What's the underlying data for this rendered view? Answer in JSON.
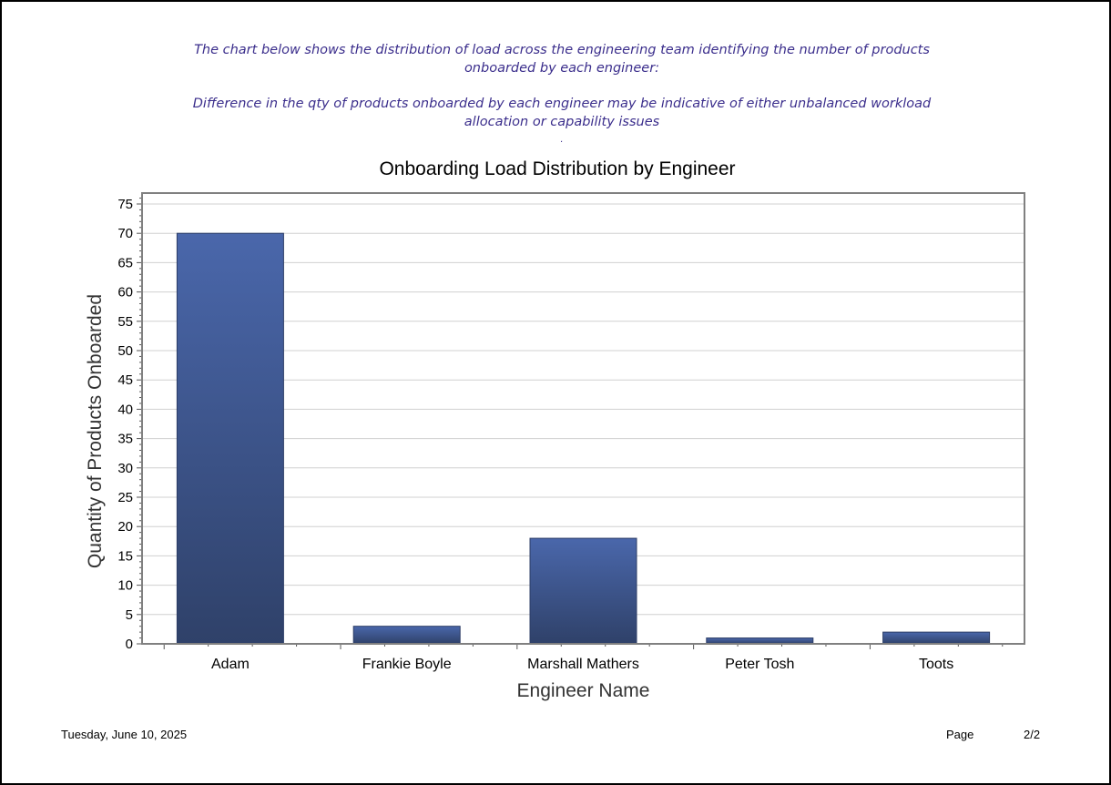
{
  "intro": {
    "line1": "The chart below shows the distribution of load across the engineering team identifying the number of products onboarded by each engineer:",
    "line2": "Difference in the qty of products onboarded by each engineer may be indicative of either unbalanced workload allocation or capability issues",
    "dot": "."
  },
  "chart_data": {
    "type": "bar",
    "title": "Onboarding Load Distribution by Engineer",
    "xlabel": "Engineer Name",
    "ylabel": "Quantity of Products Onboarded",
    "categories": [
      "Adam",
      "Frankie Boyle",
      "Marshall Mathers",
      "Peter Tosh",
      "Toots"
    ],
    "values": [
      70,
      3,
      18,
      1,
      2
    ],
    "ylim": [
      0,
      77
    ],
    "yticks": [
      0,
      5,
      10,
      15,
      20,
      25,
      30,
      35,
      40,
      45,
      50,
      55,
      60,
      65,
      70,
      75
    ],
    "grid": true,
    "bar_color_top": "#4a67ab",
    "bar_color_bottom": "#2f4169"
  },
  "footer": {
    "date": "Tuesday, June 10, 2025",
    "page_label": "Page",
    "page_value": "2/2"
  }
}
